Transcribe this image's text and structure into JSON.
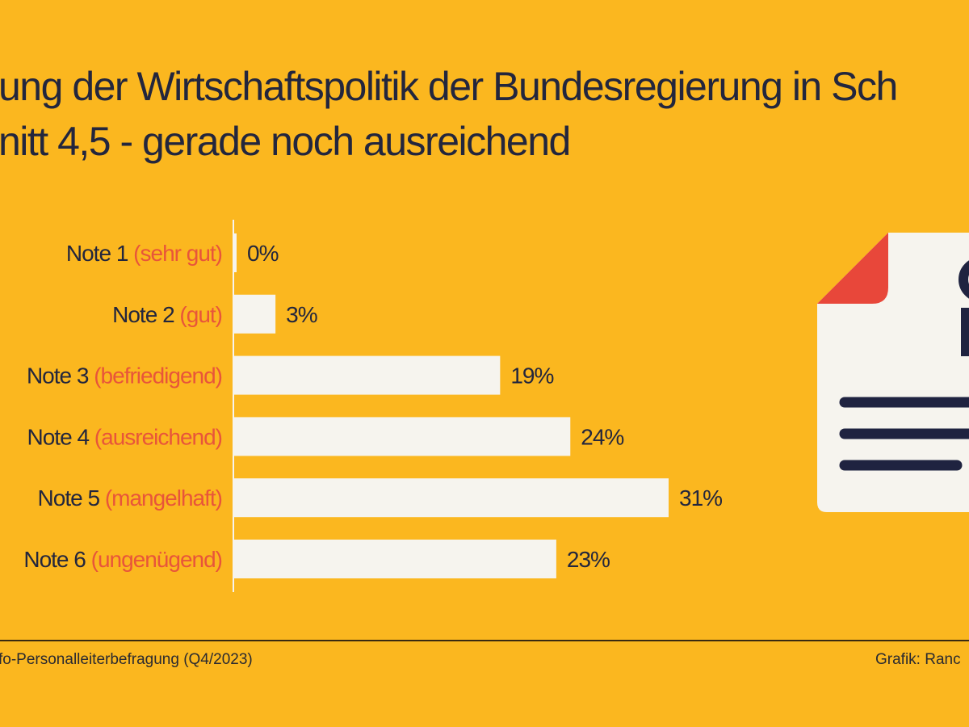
{
  "title_lines": [
    "ung der Wirtschaftspolitik der Bundesregierung in Sch",
    "nitt 4,5 - gerade noch ausreichend"
  ],
  "footer": {
    "source": "fo-Personalleiterbefragung (Q4/2023)",
    "credit": "Grafik: Ranc"
  },
  "colors": {
    "background": "#FBB71F",
    "bar": "#F6F4EE",
    "text": "#23263d",
    "accent": "#E8553A"
  },
  "icon": "document-person-icon",
  "chart_data": {
    "type": "bar",
    "orientation": "horizontal",
    "categories": [
      "Note 1",
      "Note 2",
      "Note 3",
      "Note 4",
      "Note 5",
      "Note 6"
    ],
    "category_notes": [
      "(sehr gut)",
      "(gut)",
      "(befriedigend)",
      "(ausreichend)",
      "(mangelhaft)",
      "(ungenügend)"
    ],
    "values": [
      0,
      3,
      19,
      24,
      31,
      23
    ],
    "value_labels": [
      "0%",
      "3%",
      "19%",
      "24%",
      "31%",
      "23%"
    ],
    "unit": "%",
    "xlim": [
      0,
      31
    ],
    "grid": false,
    "legend": "none"
  }
}
